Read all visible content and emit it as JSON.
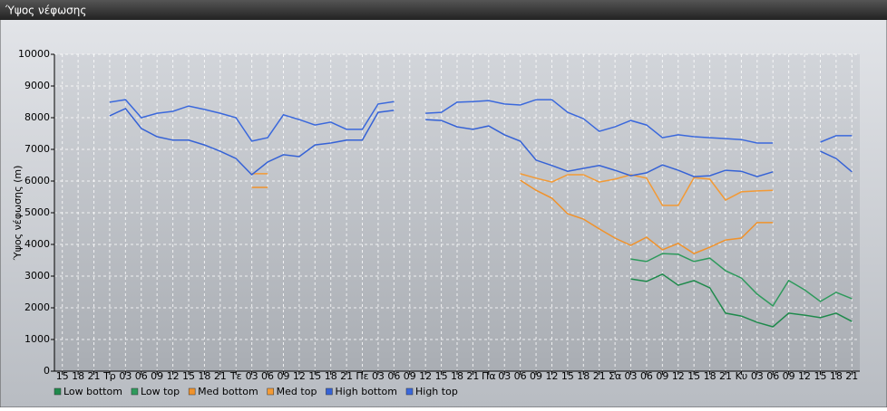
{
  "chart_data": {
    "type": "line",
    "title": "Ύψος νέφωσης",
    "ylabel": "Ύψος νέφωσης (m)",
    "categories": [
      "15",
      "18",
      "21",
      "Τρ",
      "03",
      "06",
      "09",
      "12",
      "15",
      "18",
      "21",
      "Τε",
      "03",
      "06",
      "09",
      "12",
      "15",
      "18",
      "21",
      "Πε",
      "03",
      "06",
      "09",
      "12",
      "15",
      "18",
      "21",
      "Πα",
      "03",
      "06",
      "09",
      "12",
      "15",
      "18",
      "21",
      "Σα",
      "03",
      "06",
      "09",
      "12",
      "15",
      "18",
      "21",
      "Κυ",
      "03",
      "06",
      "09",
      "12",
      "15",
      "18",
      "21"
    ],
    "ylim": [
      0,
      10000
    ],
    "yticks": [
      0,
      1000,
      2000,
      3000,
      4000,
      5000,
      6000,
      7000,
      8000,
      9000,
      10000
    ],
    "grid": true,
    "series": [
      {
        "name": "Low bottom",
        "color": "#1f8a4c",
        "values": [
          null,
          null,
          null,
          null,
          null,
          null,
          null,
          null,
          null,
          null,
          null,
          null,
          null,
          null,
          null,
          null,
          null,
          null,
          null,
          null,
          null,
          null,
          null,
          null,
          null,
          null,
          null,
          null,
          null,
          null,
          null,
          null,
          null,
          null,
          null,
          null,
          2910,
          2830,
          3060,
          2710,
          2860,
          2630,
          1830,
          1740,
          1540,
          1400,
          1830,
          1770,
          1690,
          1830,
          1570
        ]
      },
      {
        "name": "Low top",
        "color": "#2e9a5c",
        "values": [
          null,
          null,
          null,
          null,
          null,
          null,
          null,
          null,
          null,
          null,
          null,
          null,
          null,
          null,
          null,
          null,
          null,
          null,
          null,
          null,
          null,
          null,
          null,
          null,
          null,
          null,
          null,
          null,
          null,
          null,
          null,
          null,
          null,
          null,
          null,
          null,
          3540,
          3460,
          3710,
          3690,
          3460,
          3570,
          3170,
          2940,
          2430,
          2060,
          2860,
          2570,
          2200,
          2490,
          2290
        ]
      },
      {
        "name": "Med bottom",
        "color": "#f0922b",
        "values": [
          null,
          null,
          null,
          null,
          null,
          null,
          null,
          null,
          null,
          null,
          null,
          null,
          5800,
          5800,
          null,
          null,
          null,
          null,
          null,
          null,
          null,
          null,
          null,
          null,
          null,
          null,
          null,
          null,
          null,
          6030,
          5710,
          5460,
          4970,
          4800,
          4490,
          4200,
          3970,
          4230,
          3830,
          4030,
          3710,
          3910,
          4140,
          4200,
          4690,
          4690,
          null,
          null,
          null,
          null,
          null
        ]
      },
      {
        "name": "Med top",
        "color": "#f39a35",
        "values": [
          null,
          null,
          null,
          null,
          null,
          null,
          null,
          null,
          null,
          null,
          null,
          null,
          6230,
          6230,
          null,
          null,
          null,
          null,
          null,
          null,
          null,
          null,
          null,
          null,
          null,
          null,
          null,
          null,
          null,
          6230,
          6090,
          5970,
          6200,
          6200,
          5970,
          6060,
          6200,
          6090,
          5230,
          5230,
          6110,
          6060,
          5400,
          5660,
          5690,
          5710,
          null,
          null,
          null,
          null,
          null
        ]
      },
      {
        "name": "High bottom",
        "color": "#3562d6",
        "values": [
          null,
          null,
          null,
          8060,
          8290,
          7660,
          7400,
          7290,
          7290,
          7140,
          6940,
          6710,
          6200,
          6600,
          6830,
          6770,
          7140,
          7200,
          7290,
          7290,
          8170,
          8230,
          null,
          7940,
          7910,
          7710,
          7630,
          7740,
          7460,
          7260,
          6660,
          6490,
          6310,
          6400,
          6490,
          6340,
          6170,
          6260,
          6510,
          6340,
          6140,
          6170,
          6340,
          6310,
          6140,
          6290,
          null,
          null,
          6940,
          6710,
          6290
        ]
      },
      {
        "name": "High top",
        "color": "#3a68dc",
        "values": [
          null,
          null,
          null,
          8490,
          8570,
          8000,
          8140,
          8200,
          8370,
          8260,
          8140,
          8000,
          7260,
          7370,
          8090,
          7940,
          7770,
          7860,
          7630,
          7630,
          8430,
          8510,
          null,
          8140,
          8170,
          8490,
          8510,
          8540,
          8430,
          8400,
          8570,
          8570,
          8170,
          7970,
          7570,
          7710,
          7910,
          7770,
          7370,
          7460,
          7400,
          7370,
          7340,
          7310,
          7200,
          7200,
          null,
          null,
          7230,
          7430,
          7430
        ]
      }
    ]
  }
}
